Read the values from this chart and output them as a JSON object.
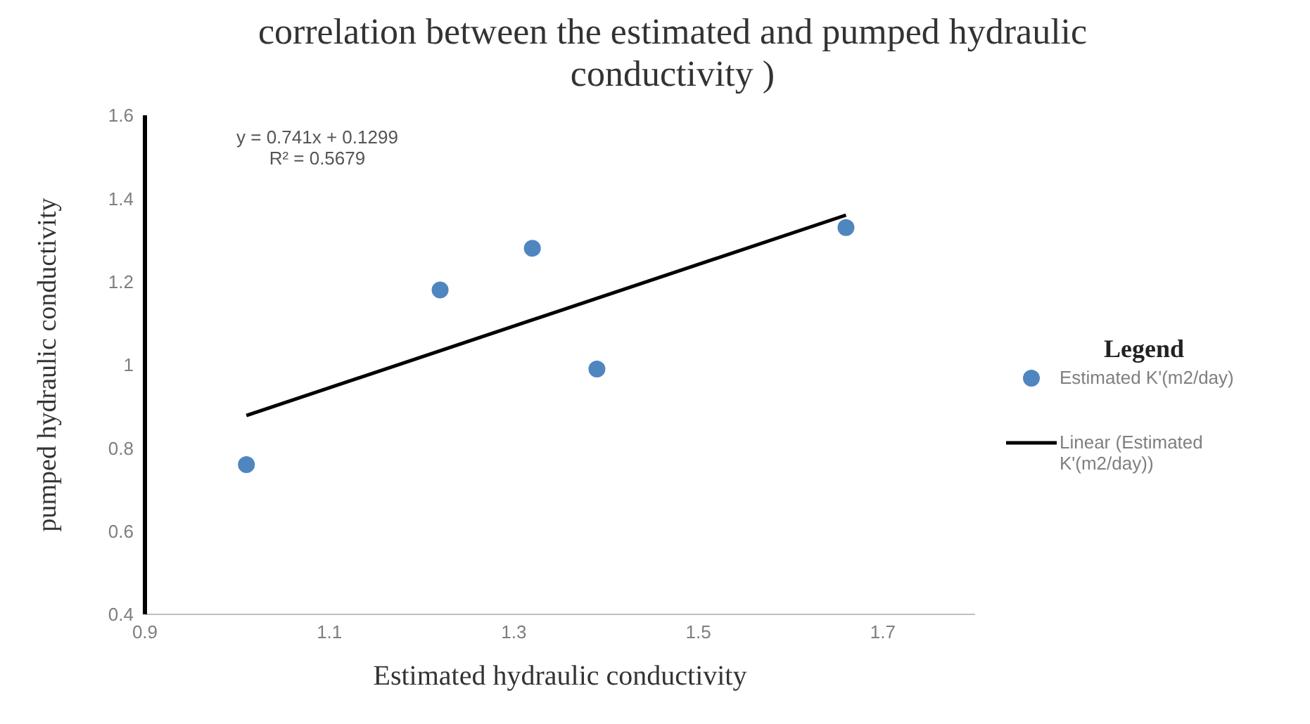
{
  "chart_data": {
    "type": "scatter",
    "title": "correlation between the estimated and  pumped hydraulic conductivity )",
    "xlabel": "Estimated  hydraulic conductivity",
    "ylabel": "pumped hydraulic conductivity",
    "legend_title": "Legend",
    "legend": "right",
    "grid": false,
    "marker": "circle",
    "x": [
      1.01,
      1.22,
      1.32,
      1.39,
      1.66
    ],
    "series": [
      {
        "name": "Estimated K'(m2/day)",
        "color": "#4f86c0",
        "values": [
          0.76,
          1.18,
          1.28,
          0.99,
          1.33
        ]
      },
      {
        "name": "Linear (Estimated K'(m2/day))",
        "type": "line",
        "color": "#000000",
        "x": [
          1.01,
          1.66
        ],
        "values": [
          0.878,
          1.36
        ],
        "marker": "none",
        "line_style": "solid"
      }
    ],
    "annotations": [
      "y = 0.741x + 0.1299",
      "R² = 0.5679"
    ],
    "xlim": [
      0.9,
      1.8
    ],
    "xticks": [
      0.9,
      1.1,
      1.3,
      1.5,
      1.7
    ],
    "ylim": [
      0.4,
      1.6
    ],
    "yticks": [
      0.4,
      0.6,
      0.8,
      1,
      1.2,
      1.4,
      1.6
    ]
  }
}
